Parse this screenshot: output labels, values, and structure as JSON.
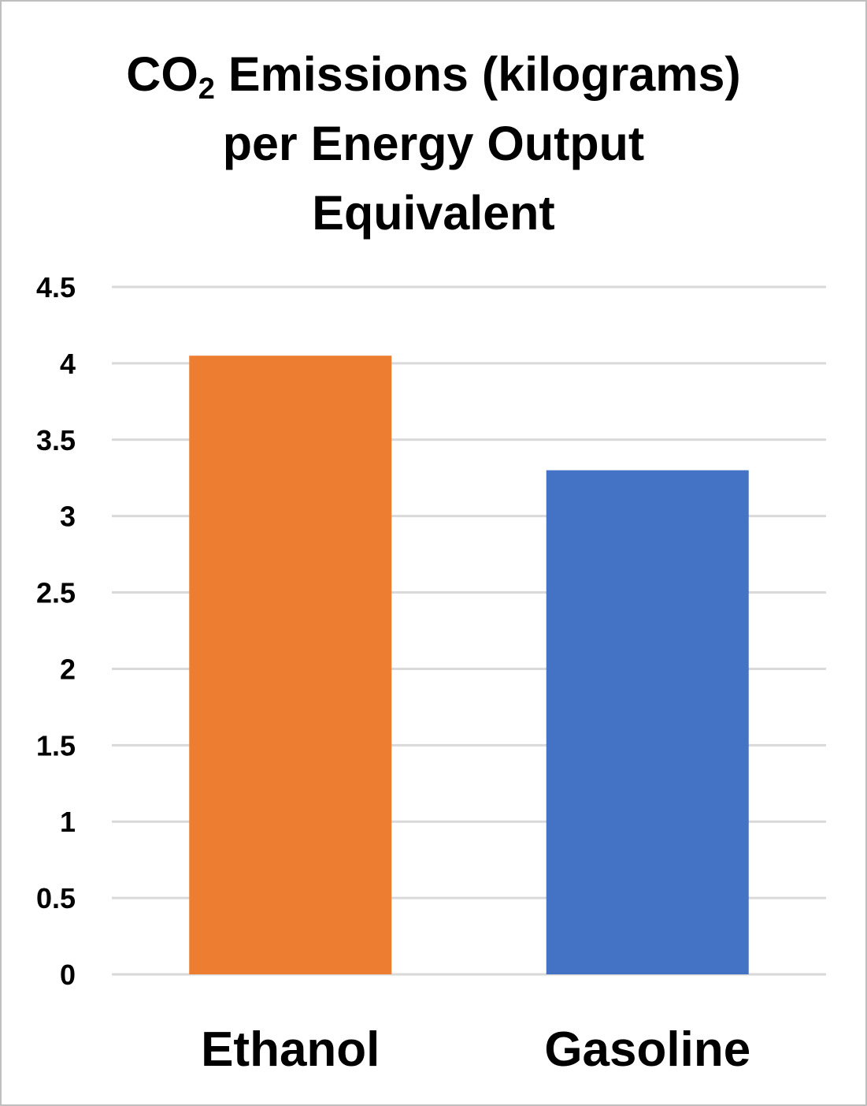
{
  "chart_data": {
    "type": "bar",
    "title": {
      "line1_before_sub": "CO",
      "line1_sub": "2",
      "line1_after_sub": " Emissions (kilograms)",
      "line2": "per Energy Output",
      "line3": "Equivalent"
    },
    "categories": [
      "Ethanol",
      "Gasoline"
    ],
    "values": [
      4.05,
      3.3
    ],
    "colors": [
      "#ED7D31",
      "#4472C4"
    ],
    "yticks": [
      "0",
      "0.5",
      "1",
      "1.5",
      "2",
      "2.5",
      "3",
      "3.5",
      "4",
      "4.5"
    ],
    "ylim": [
      0,
      4.5
    ],
    "grid": true,
    "gridline_color": "#d9d9d9",
    "legend": "none"
  }
}
